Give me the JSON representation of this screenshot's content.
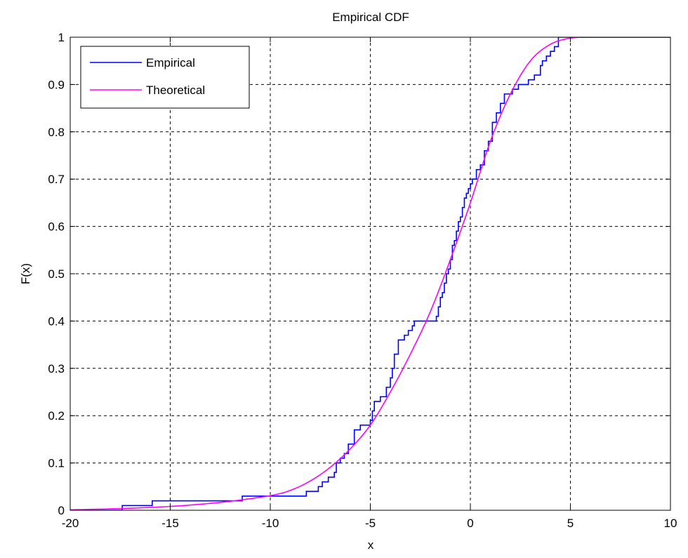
{
  "chart_data": {
    "type": "line",
    "title": "Empirical CDF",
    "xlabel": "x",
    "ylabel": "F(x)",
    "xlim": [
      -20,
      10
    ],
    "ylim": [
      0,
      1
    ],
    "xticks": [
      -20,
      -15,
      -10,
      -5,
      0,
      5,
      10
    ],
    "yticks": [
      0,
      0.1,
      0.2,
      0.3,
      0.4,
      0.5,
      0.6,
      0.7,
      0.8,
      0.9,
      1
    ],
    "grid": true,
    "legend_position": "top-left",
    "series": [
      {
        "name": "Empirical",
        "color": "#0000ff",
        "style": "step",
        "x": [
          -20,
          -17.4,
          -15.9,
          -11.4,
          -9.5,
          -8.2,
          -7.6,
          -7.4,
          -7.1,
          -6.8,
          -6.7,
          -6.5,
          -6.3,
          -6.1,
          -5.8,
          -5.5,
          -5.0,
          -4.9,
          -4.8,
          -4.5,
          -4.2,
          -4.0,
          -3.9,
          -3.8,
          -3.6,
          -3.3,
          -3.1,
          -2.9,
          -2.8,
          -2.5,
          -1.7,
          -1.6,
          -1.5,
          -1.4,
          -1.3,
          -1.2,
          -1.1,
          -1.0,
          -0.9,
          -0.8,
          -0.7,
          -0.6,
          -0.5,
          -0.4,
          -0.3,
          -0.2,
          -0.1,
          0.0,
          0.1,
          0.3,
          0.5,
          0.7,
          0.9,
          1.1,
          1.3,
          1.5,
          1.7,
          2.1,
          2.4,
          2.9,
          3.2,
          3.5,
          3.6,
          3.8,
          4.0,
          4.2,
          4.4
        ],
        "y": [
          0,
          0.01,
          0.02,
          0.03,
          0.03,
          0.04,
          0.05,
          0.06,
          0.07,
          0.08,
          0.1,
          0.11,
          0.12,
          0.14,
          0.17,
          0.18,
          0.19,
          0.21,
          0.23,
          0.24,
          0.26,
          0.28,
          0.3,
          0.33,
          0.36,
          0.37,
          0.38,
          0.39,
          0.4,
          0.4,
          0.41,
          0.43,
          0.45,
          0.46,
          0.48,
          0.5,
          0.51,
          0.53,
          0.56,
          0.57,
          0.59,
          0.61,
          0.62,
          0.64,
          0.66,
          0.67,
          0.68,
          0.69,
          0.7,
          0.72,
          0.73,
          0.76,
          0.78,
          0.82,
          0.84,
          0.86,
          0.88,
          0.89,
          0.9,
          0.91,
          0.92,
          0.94,
          0.95,
          0.96,
          0.97,
          0.98,
          1.0
        ]
      },
      {
        "name": "Theoretical",
        "color": "#ff00ff",
        "style": "line",
        "x": [
          -20,
          -18,
          -16,
          -14,
          -12,
          -10,
          -9,
          -8,
          -7,
          -6,
          -5,
          -4,
          -3,
          -2,
          -1,
          0,
          1,
          2,
          3,
          4,
          5,
          6,
          7,
          8,
          10
        ],
        "y": [
          0.001,
          0.003,
          0.006,
          0.011,
          0.019,
          0.031,
          0.042,
          0.062,
          0.091,
          0.13,
          0.18,
          0.25,
          0.33,
          0.42,
          0.53,
          0.65,
          0.78,
          0.88,
          0.95,
          0.985,
          0.998,
          1.0,
          1.0,
          1.0,
          1.0
        ]
      }
    ]
  }
}
